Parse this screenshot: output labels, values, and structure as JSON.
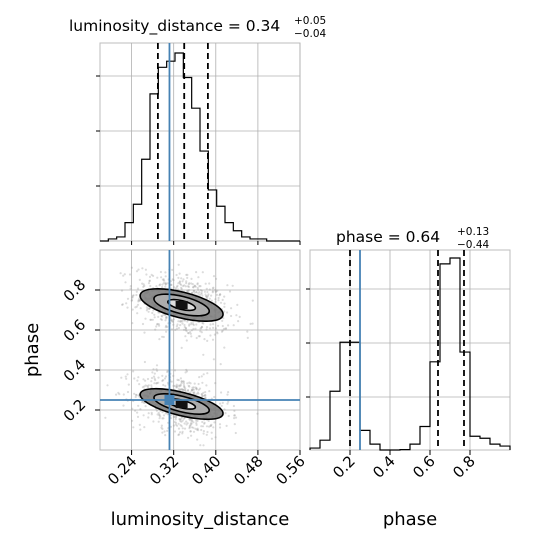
{
  "chart_data": {
    "type": "corner",
    "parameters": [
      "luminosity_distance",
      "phase"
    ],
    "truths": {
      "luminosity_distance": 0.312,
      "phase": 0.25
    },
    "truth_color": "#4682b4",
    "panels": [
      {
        "id": "ld-hist",
        "type": "step-histogram",
        "parameter": "luminosity_distance",
        "title_label": "luminosity_distance = 0.34",
        "title_sup": "+0.05",
        "title_sub": "−0.04",
        "xlim": [
          0.18,
          0.56
        ],
        "bin_edges": [
          0.18,
          0.19583,
          0.21167,
          0.2275,
          0.24333,
          0.25917,
          0.275,
          0.29083,
          0.30667,
          0.3225,
          0.33833,
          0.35417,
          0.37,
          0.38583,
          0.40167,
          0.4175,
          0.43333,
          0.44917,
          0.465,
          0.48083,
          0.49667,
          0.5125,
          0.52833,
          0.54417,
          0.56
        ],
        "counts": [
          0,
          1,
          2,
          9,
          18,
          40,
          72,
          85,
          88,
          92,
          80,
          65,
          44,
          25,
          17,
          9,
          5,
          2,
          1,
          1,
          0,
          0,
          0,
          0
        ],
        "quantile_lines": [
          0.29,
          0.34,
          0.385
        ]
      },
      {
        "id": "phase-hist",
        "type": "step-histogram",
        "parameter": "phase",
        "title_label": "phase = 0.64",
        "title_sup": "+0.13",
        "title_sub": "−0.44",
        "xlim": [
          0.0,
          1.0
        ],
        "bin_edges": [
          0,
          0.05,
          0.1,
          0.15,
          0.2,
          0.25,
          0.3,
          0.35,
          0.4,
          0.45,
          0.5,
          0.55,
          0.6,
          0.65,
          0.7,
          0.75,
          0.8,
          0.85,
          0.9,
          0.95,
          1.0
        ],
        "counts": [
          1,
          5,
          30,
          55,
          55,
          10,
          3,
          0,
          0,
          0.2,
          3,
          12,
          45,
          95,
          98,
          50,
          7,
          6,
          3,
          2
        ],
        "quantile_lines": [
          0.2,
          0.64,
          0.77
        ]
      },
      {
        "id": "joint",
        "type": "scatter-contour",
        "xlim": [
          0.18,
          0.56
        ],
        "ylim": [
          0.0,
          1.0
        ],
        "modes": [
          {
            "center": [
              0.335,
              0.725
            ],
            "sx": 0.045,
            "sy": 0.078
          },
          {
            "center": [
              0.335,
              0.23
            ],
            "sx": 0.045,
            "sy": 0.07
          }
        ],
        "contour_levels": [
          0.5,
          1.0,
          1.5
        ]
      }
    ],
    "x_ticks": {
      "luminosity_distance": [
        "0.24",
        "0.32",
        "0.40",
        "0.48",
        "0.56"
      ],
      "phase": [
        "0.2",
        "0.4",
        "0.6",
        "0.8"
      ]
    },
    "y_ticks": {
      "phase": [
        "0.2",
        "0.4",
        "0.6",
        "0.8"
      ]
    },
    "xlabels": [
      "luminosity_distance",
      "phase"
    ],
    "ylabel": "phase",
    "grid": true
  }
}
